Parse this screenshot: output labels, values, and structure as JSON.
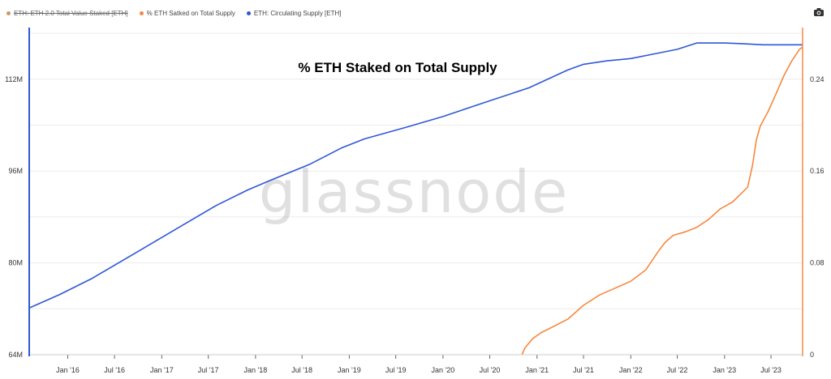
{
  "legend": [
    {
      "label": "ETH: ETH 2.0 Total Value Staked [ETH]",
      "color": "#c99a62",
      "hidden": true
    },
    {
      "label": "% ETH Satked on Total Supply",
      "color": "#f7883e",
      "hidden": false
    },
    {
      "label": "ETH: Circulating Supply [ETH]",
      "color": "#2f57d6",
      "hidden": false
    }
  ],
  "toolbar": {
    "camera_icon": "camera-icon"
  },
  "watermark": "glassnode",
  "chart_data": {
    "type": "line",
    "title": "% ETH Staked on Total Supply",
    "x_ticks": [
      "Jan '16",
      "Jul '16",
      "Jan '17",
      "Jul '17",
      "Jan '18",
      "Jul '18",
      "Jan '19",
      "Jul '19",
      "Jan '20",
      "Jul '20",
      "Jan '21",
      "Jul '21",
      "Jan '22",
      "Jul '22",
      "Jan '23",
      "Jul '23"
    ],
    "x_range": [
      "2015-08-07",
      "2023-11-01"
    ],
    "y_left": {
      "ticks": [
        "64M",
        "80M",
        "96M",
        "112M"
      ],
      "range": [
        64000000,
        121000000
      ]
    },
    "y_right": {
      "ticks": [
        "0",
        "0.08",
        "0.16",
        "0.24"
      ],
      "range": [
        0,
        0.285
      ]
    },
    "grid": true,
    "legend_position": "top-left",
    "series": [
      {
        "name": "ETH: Circulating Supply [ETH]",
        "axis": "left",
        "color": "#2f57d6",
        "points": [
          [
            "2015-08-07",
            72200000
          ],
          [
            "2015-12-01",
            74500000
          ],
          [
            "2016-04-01",
            77200000
          ],
          [
            "2016-10-01",
            82000000
          ],
          [
            "2017-04-01",
            86800000
          ],
          [
            "2017-08-01",
            90000000
          ],
          [
            "2017-12-01",
            92700000
          ],
          [
            "2018-03-01",
            94400000
          ],
          [
            "2018-08-01",
            97200000
          ],
          [
            "2018-12-01",
            100000000
          ],
          [
            "2019-03-01",
            101600000
          ],
          [
            "2019-08-01",
            103500000
          ],
          [
            "2020-01-01",
            105500000
          ],
          [
            "2020-06-01",
            107800000
          ],
          [
            "2020-12-01",
            110500000
          ],
          [
            "2021-05-01",
            113600000
          ],
          [
            "2021-07-01",
            114600000
          ],
          [
            "2021-10-01",
            115200000
          ],
          [
            "2022-01-01",
            115600000
          ],
          [
            "2022-04-01",
            116400000
          ],
          [
            "2022-07-01",
            117200000
          ],
          [
            "2022-09-15",
            118300000
          ],
          [
            "2023-01-01",
            118300000
          ],
          [
            "2023-03-01",
            118200000
          ],
          [
            "2023-06-01",
            118000000
          ],
          [
            "2023-09-01",
            118000000
          ],
          [
            "2023-11-01",
            118000000
          ]
        ]
      },
      {
        "name": "% ETH Satked on Total Supply",
        "axis": "right",
        "color": "#f7883e",
        "points": [
          [
            "2020-11-03",
            0.0
          ],
          [
            "2020-11-15",
            0.006
          ],
          [
            "2020-12-15",
            0.014
          ],
          [
            "2021-01-15",
            0.019
          ],
          [
            "2021-03-01",
            0.024
          ],
          [
            "2021-05-01",
            0.031
          ],
          [
            "2021-07-01",
            0.043
          ],
          [
            "2021-09-01",
            0.052
          ],
          [
            "2021-11-01",
            0.058
          ],
          [
            "2022-01-01",
            0.064
          ],
          [
            "2022-03-01",
            0.074
          ],
          [
            "2022-04-15",
            0.089
          ],
          [
            "2022-05-15",
            0.098
          ],
          [
            "2022-06-15",
            0.104
          ],
          [
            "2022-08-01",
            0.107
          ],
          [
            "2022-09-15",
            0.111
          ],
          [
            "2022-11-01",
            0.118
          ],
          [
            "2022-12-15",
            0.127
          ],
          [
            "2023-02-01",
            0.133
          ],
          [
            "2023-03-10",
            0.141
          ],
          [
            "2023-04-01",
            0.146
          ],
          [
            "2023-04-20",
            0.165
          ],
          [
            "2023-05-05",
            0.187
          ],
          [
            "2023-05-20",
            0.199
          ],
          [
            "2023-06-20",
            0.212
          ],
          [
            "2023-07-20",
            0.227
          ],
          [
            "2023-08-20",
            0.243
          ],
          [
            "2023-09-20",
            0.256
          ],
          [
            "2023-10-20",
            0.266
          ],
          [
            "2023-11-01",
            0.268
          ]
        ]
      }
    ]
  }
}
